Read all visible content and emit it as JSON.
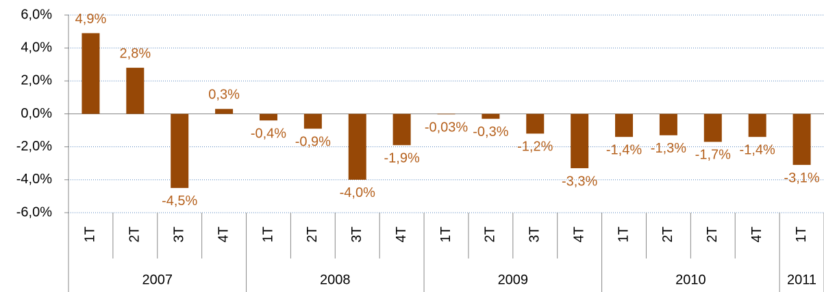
{
  "chart_data": {
    "type": "bar",
    "categories": [
      "1T",
      "2T",
      "3T",
      "4T",
      "1T",
      "2T",
      "3T",
      "4T",
      "1T",
      "2T",
      "3T",
      "4T",
      "1T",
      "2T",
      "2T",
      "4T",
      "1T"
    ],
    "category_groups": [
      "2007",
      "2007",
      "2007",
      "2007",
      "2008",
      "2008",
      "2008",
      "2008",
      "2009",
      "2009",
      "2009",
      "2009",
      "2010",
      "2010",
      "2010",
      "2010",
      "2011"
    ],
    "values": [
      4.9,
      2.8,
      -4.5,
      0.3,
      -0.4,
      -0.9,
      -4.0,
      -1.9,
      -0.03,
      -0.3,
      -1.2,
      -3.3,
      -1.4,
      -1.3,
      -1.7,
      -1.4,
      -3.1
    ],
    "value_labels": [
      "4,9%",
      "2,8%",
      "-4,5%",
      "0,3%",
      "-0,4%",
      "-0,9%",
      "-4,0%",
      "-1,9%",
      "-0,03%",
      "-0,3%",
      "-1,2%",
      "-3,3%",
      "-1,4%",
      "-1,3%",
      "-1,7%",
      "-1,4%",
      "-3,1%"
    ],
    "color": "#974806",
    "ylim": [
      -6,
      6
    ],
    "yticks": [
      {
        "value": -6,
        "label": "-6,0%"
      },
      {
        "value": -4,
        "label": "-4,0%"
      },
      {
        "value": -2,
        "label": "-2,0%"
      },
      {
        "value": 0,
        "label": "0,0%"
      },
      {
        "value": 2,
        "label": "2,0%"
      },
      {
        "value": 4,
        "label": "4,0%"
      },
      {
        "value": 6,
        "label": "6,0%"
      }
    ],
    "grid": true
  }
}
